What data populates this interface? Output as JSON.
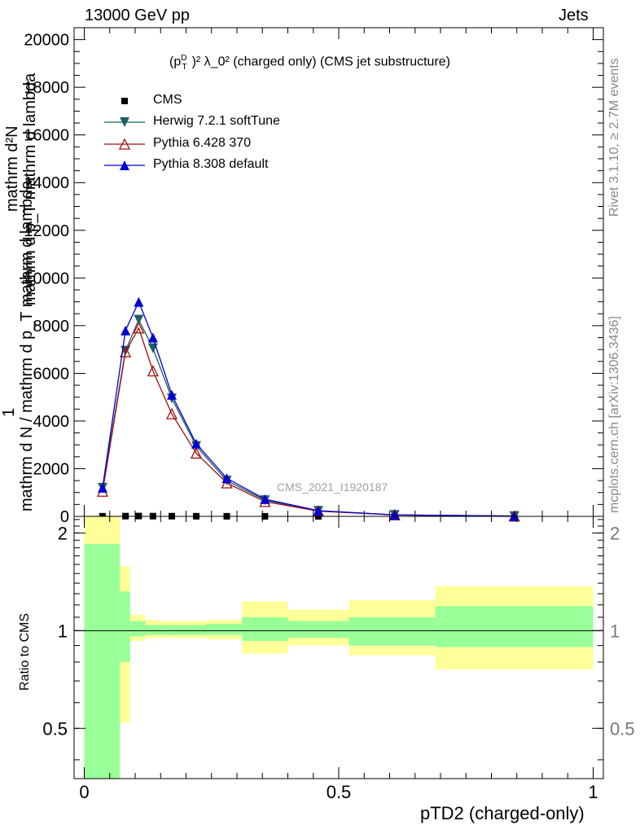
{
  "header": {
    "left": "13000 GeV pp",
    "right": "Jets"
  },
  "side_labels": {
    "rivet": "Rivet 3.1.10, ≥ 2.7M events",
    "mcplots": "mcplots.cern.ch [arXiv:1306.3436]"
  },
  "watermark": "CMS_2021_I1920187",
  "title_pre": "(p",
  "title_sup": "D",
  "title_sub": "T",
  "title_rest": ")² λ_0² (charged only) (CMS jet substructure)",
  "main_ylabel_num": "1",
  "main_ylabel_lines": [
    "mathrm d²N",
    "mathrm d p_T mathrm d lambda",
    "mathrm d N / mathrm d p_T mathrm d lambda"
  ],
  "ratio_ylabel": "Ratio to CMS",
  "xlabel": "pTD2 (charged-only)",
  "colors": {
    "cms": "#000000",
    "herwig": "#1f5f5f",
    "pythia6": "#a01010",
    "pythia8": "#0000d0",
    "band_inner": "#99ff99",
    "band_outer": "#ffff99"
  },
  "chart_data": [
    {
      "type": "line",
      "title": "(p_T^D)² λ_0² (charged only) (CMS jet substructure)",
      "xlim": [
        -0.02,
        1.02
      ],
      "ylim": [
        0,
        20500
      ],
      "yticks": [
        0,
        2000,
        4000,
        6000,
        8000,
        10000,
        12000,
        14000,
        16000,
        18000,
        20000
      ],
      "legend": "top-left",
      "x": [
        0.036,
        0.081,
        0.107,
        0.135,
        0.172,
        0.22,
        0.28,
        0.355,
        0.46,
        0.61,
        0.845
      ],
      "series": [
        {
          "name": "CMS",
          "marker": "square",
          "values": [
            5,
            10,
            14,
            10,
            8,
            6,
            4,
            3,
            2,
            1,
            0.5
          ]
        },
        {
          "name": "Herwig 7.2.1 softTune",
          "marker": "triangle-down",
          "values": [
            1200,
            6950,
            8250,
            7050,
            4950,
            2950,
            1500,
            680,
            230,
            60,
            10
          ]
        },
        {
          "name": "Pythia 6.428 370",
          "marker": "triangle-up-open",
          "values": [
            1050,
            6900,
            7900,
            6100,
            4300,
            2650,
            1400,
            620,
            220,
            60,
            10
          ]
        },
        {
          "name": "Pythia 8.308 default",
          "marker": "triangle-up",
          "values": [
            1200,
            7800,
            9000,
            7500,
            5100,
            3050,
            1600,
            720,
            240,
            65,
            10
          ]
        }
      ]
    },
    {
      "type": "area",
      "ylabel": "Ratio to CMS",
      "xlabel": "pTD2 (charged-only)",
      "xlim": [
        -0.02,
        1.02
      ],
      "ylim": [
        0.35,
        2.25
      ],
      "xticks": [
        0,
        0.5,
        1
      ],
      "yticks": [
        0.5,
        1,
        2
      ],
      "bins": [
        {
          "lo": 0.0,
          "hi": 0.07,
          "inner": [
            0.35,
            1.85
          ],
          "outer": [
            0.35,
            2.25
          ]
        },
        {
          "lo": 0.07,
          "hi": 0.09,
          "inner": [
            0.8,
            1.32
          ],
          "outer": [
            0.52,
            1.58
          ]
        },
        {
          "lo": 0.09,
          "hi": 0.12,
          "inner": [
            0.96,
            1.07
          ],
          "outer": [
            0.93,
            1.12
          ]
        },
        {
          "lo": 0.12,
          "hi": 0.15,
          "inner": [
            0.97,
            1.04
          ],
          "outer": [
            0.95,
            1.08
          ]
        },
        {
          "lo": 0.15,
          "hi": 0.24,
          "inner": [
            0.97,
            1.04
          ],
          "outer": [
            0.95,
            1.07
          ]
        },
        {
          "lo": 0.24,
          "hi": 0.31,
          "inner": [
            0.97,
            1.05
          ],
          "outer": [
            0.94,
            1.08
          ]
        },
        {
          "lo": 0.31,
          "hi": 0.4,
          "inner": [
            0.93,
            1.1
          ],
          "outer": [
            0.85,
            1.23
          ]
        },
        {
          "lo": 0.4,
          "hi": 0.52,
          "inner": [
            0.95,
            1.07
          ],
          "outer": [
            0.9,
            1.16
          ]
        },
        {
          "lo": 0.52,
          "hi": 0.69,
          "inner": [
            0.9,
            1.1
          ],
          "outer": [
            0.84,
            1.24
          ]
        },
        {
          "lo": 0.69,
          "hi": 1.0,
          "inner": [
            0.89,
            1.19
          ],
          "outer": [
            0.76,
            1.37
          ]
        }
      ]
    }
  ]
}
